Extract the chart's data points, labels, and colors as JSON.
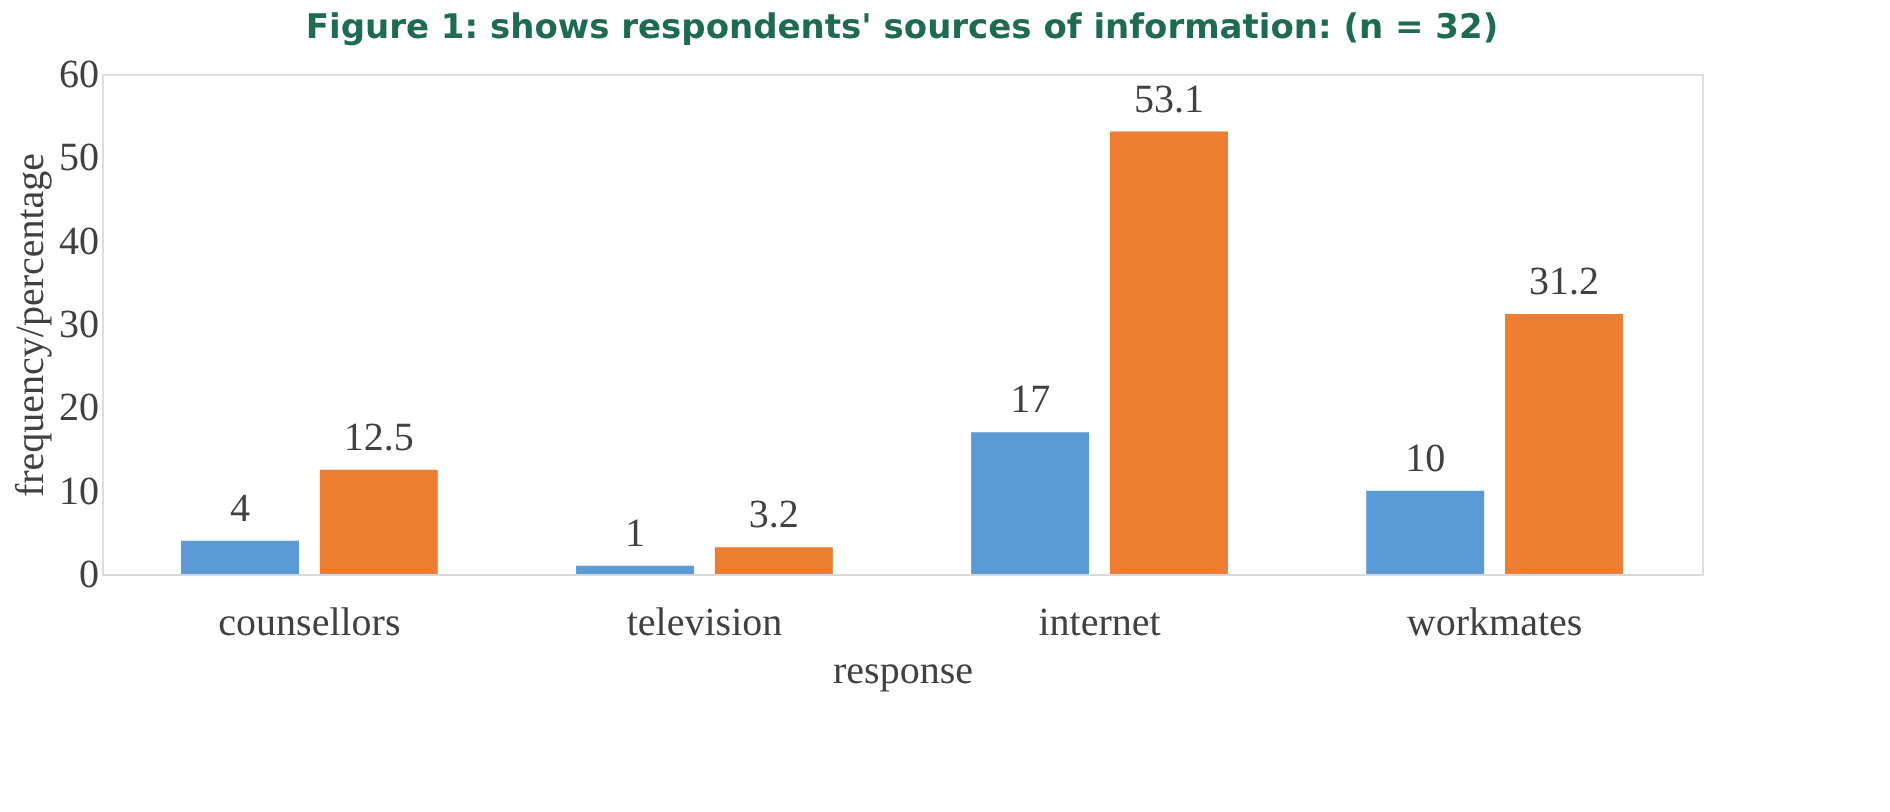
{
  "chart_data": {
    "type": "bar",
    "title": "Figure 1: shows respondents' sources of information: (n = 32)",
    "categories": [
      "counsellors",
      "television",
      "internet",
      "workmates"
    ],
    "series": [
      {
        "color": "#5b9bd5",
        "values": [
          4,
          1,
          17,
          10
        ]
      },
      {
        "color": "#ed7d31",
        "values": [
          12.5,
          3.2,
          53.1,
          31.2
        ]
      }
    ],
    "xlabel": "response",
    "ylabel": "frequency/percentage",
    "ylim": [
      0,
      60
    ],
    "yticks": [
      0,
      10,
      20,
      30,
      40,
      50,
      60
    ],
    "grid": false,
    "legend": false,
    "data_labels": true
  }
}
